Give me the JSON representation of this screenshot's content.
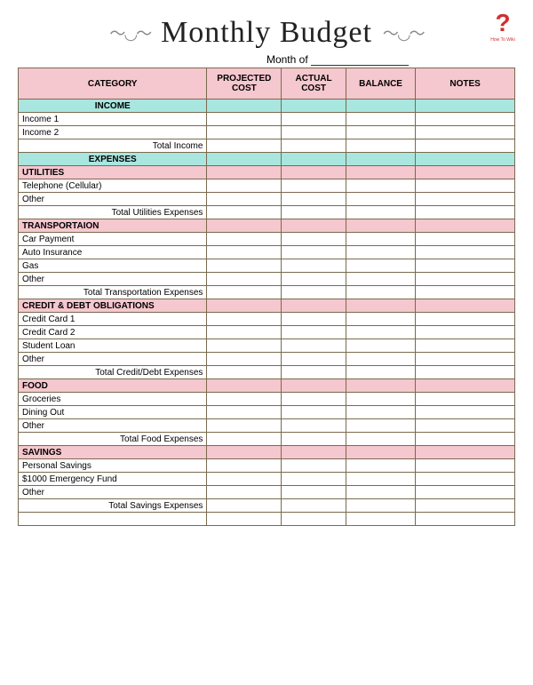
{
  "logo": {
    "mark": "?",
    "text": "How To Wiki",
    "color": "#d32f2f"
  },
  "title": "Monthly Budget",
  "month_label": "Month of",
  "headers": {
    "category": "CATEGORY",
    "projected": "PROJECTED COST",
    "actual": "ACTUAL COST",
    "balance": "BALANCE",
    "notes": "NOTES"
  },
  "colors": {
    "header_bg": "#f5c7ce",
    "section_main_bg": "#a8e6df",
    "section_sub_bg": "#f5c7ce",
    "border": "#7a6a4f",
    "background": "#ffffff"
  },
  "income": {
    "label": "INCOME",
    "rows": [
      "Income 1",
      "Income 2"
    ],
    "total": "Total Income"
  },
  "expenses_label": "EXPENSES",
  "sections": {
    "utilities": {
      "label": "UTILITIES",
      "rows": [
        "Telephone (Cellular)",
        "Other"
      ],
      "total": "Total Utilities Expenses"
    },
    "transportation": {
      "label": "TRANSPORTAION",
      "rows": [
        "Car Payment",
        "Auto Insurance",
        "Gas",
        "Other"
      ],
      "total": "Total Transportation Expenses"
    },
    "credit": {
      "label": "CREDIT & DEBT OBLIGATIONS",
      "rows": [
        "Credit Card 1",
        "Credit Card 2",
        "Student Loan",
        "Other"
      ],
      "total": "Total Credit/Debt Expenses"
    },
    "food": {
      "label": "FOOD",
      "rows": [
        "Groceries",
        "Dining Out",
        "Other"
      ],
      "total": "Total Food Expenses"
    },
    "savings": {
      "label": "SAVINGS",
      "rows": [
        "Personal Savings",
        "$1000 Emergency Fund",
        "Other"
      ],
      "total": "Total Savings Expenses"
    }
  }
}
